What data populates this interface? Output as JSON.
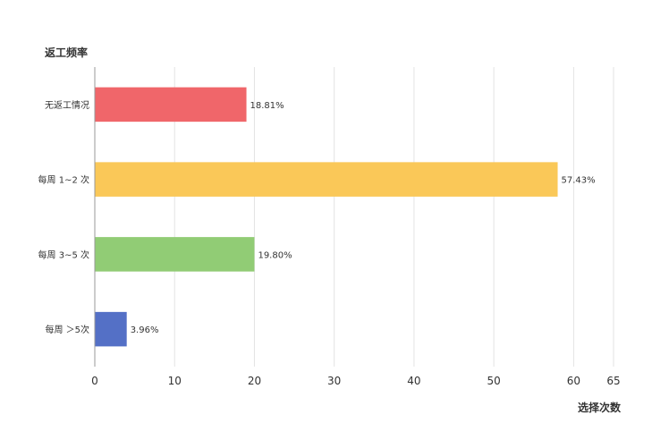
{
  "chart_data": {
    "type": "bar",
    "orientation": "horizontal",
    "ylabel": "返工频率",
    "xlabel": "选择次数",
    "categories": [
      "无返工情况",
      "每周 1~2 次",
      "每周 3~5 次",
      "每周 ＞5次"
    ],
    "values": [
      19,
      58,
      20,
      4
    ],
    "data_labels": [
      "18.81%",
      "57.43%",
      "19.80%",
      "3.96%"
    ],
    "colors": [
      "#f0666a",
      "#fac858",
      "#91cc75",
      "#5470c6"
    ],
    "xlim": [
      0,
      65
    ],
    "xticks": [
      0,
      10,
      20,
      30,
      40,
      50,
      60,
      65
    ],
    "grid": true,
    "legend": "none"
  }
}
